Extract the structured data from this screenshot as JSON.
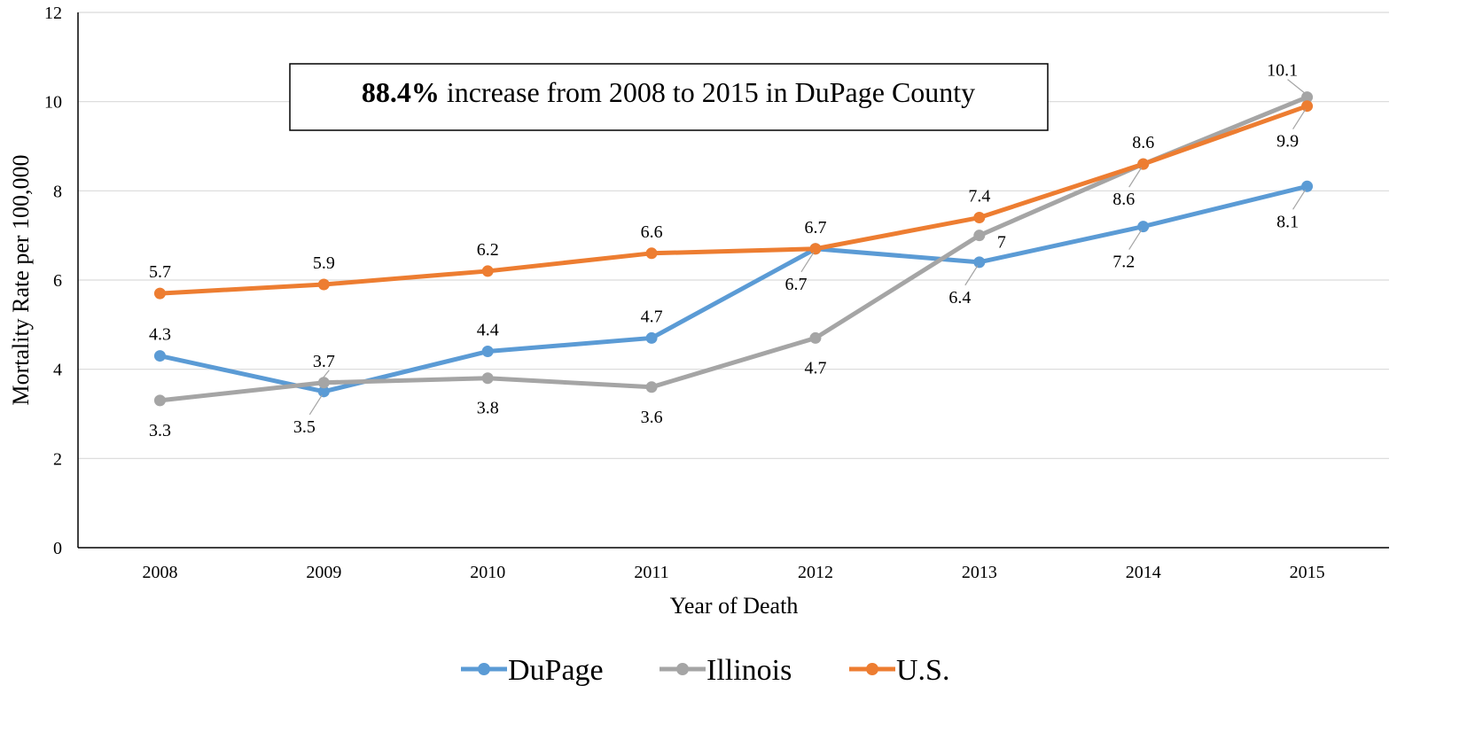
{
  "chart_data": {
    "type": "line",
    "categories": [
      "2008",
      "2009",
      "2010",
      "2011",
      "2012",
      "2013",
      "2014",
      "2015"
    ],
    "series": [
      {
        "name": "DuPage",
        "color": "#5B9BD5",
        "values": [
          4.3,
          3.5,
          4.4,
          4.7,
          6.7,
          6.4,
          7.2,
          8.1
        ]
      },
      {
        "name": "Illinois",
        "color": "#A5A5A5",
        "values": [
          3.3,
          3.7,
          3.8,
          3.6,
          4.7,
          7.0,
          8.6,
          10.1
        ]
      },
      {
        "name": "U.S.",
        "color": "#ED7D31",
        "values": [
          5.7,
          5.9,
          6.2,
          6.6,
          6.7,
          7.4,
          8.6,
          9.9
        ]
      }
    ],
    "data_labels": {
      "DuPage": [
        "4.3",
        "3.5",
        "4.4",
        "4.7",
        "6.7",
        "6.4",
        "7.2",
        "8.1"
      ],
      "Illinois": [
        "3.3",
        "3.7",
        "3.8",
        "3.6",
        "4.7",
        "7",
        "8.6",
        "10.1"
      ],
      "U.S.": [
        "5.7",
        "5.9",
        "6.2",
        "6.6",
        "6.7",
        "7.4",
        "8.6",
        "9.9"
      ]
    },
    "yticks": [
      "0",
      "2",
      "4",
      "6",
      "8",
      "10",
      "12"
    ],
    "ylim": [
      0,
      12
    ],
    "xlabel": "Year of Death",
    "ylabel": "Mortality Rate per 100,000",
    "annotation": {
      "bold": "88.4%",
      "rest": " increase from 2008 to 2015 in DuPage County"
    },
    "grid": true,
    "legend_position": "bottom"
  }
}
